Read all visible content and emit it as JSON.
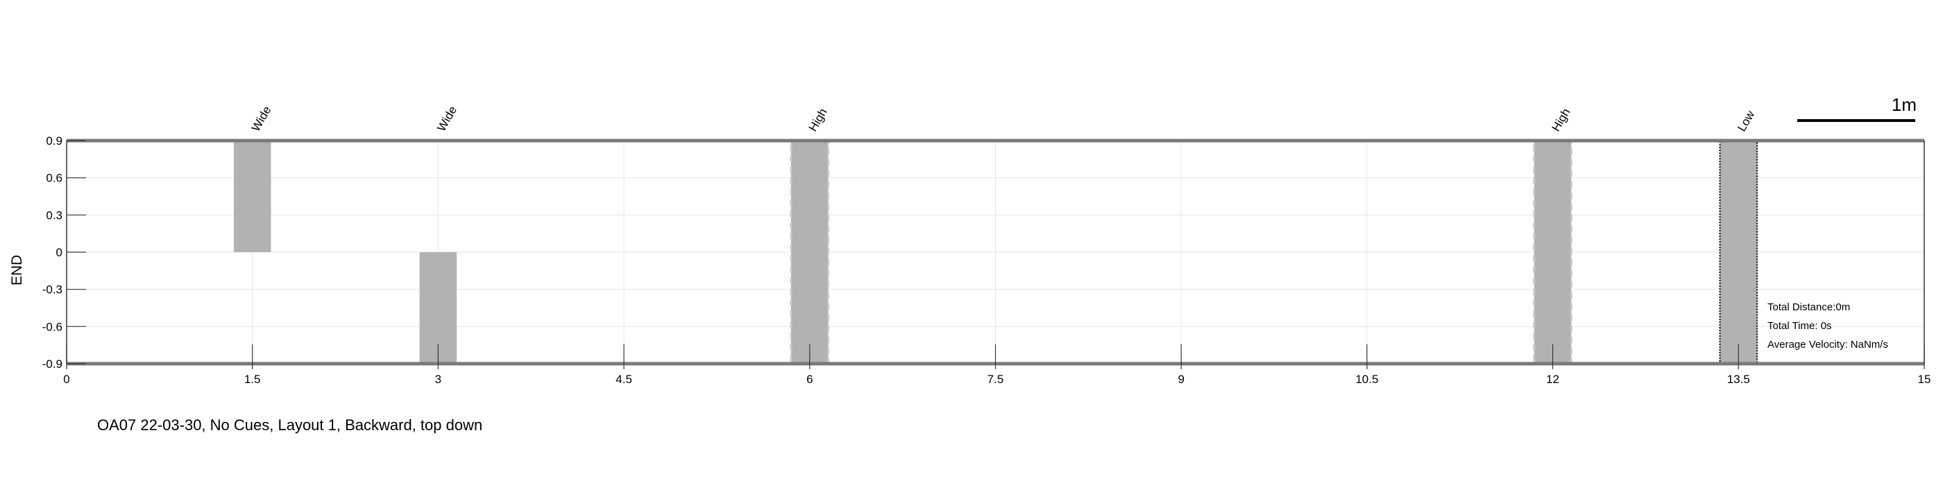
{
  "chart_data": {
    "type": "bar",
    "title": "",
    "xlabel": "",
    "ylabel": "END",
    "xlim": [
      0,
      15
    ],
    "ylim": [
      -0.9,
      0.9
    ],
    "x_ticks": [
      "0",
      "1.5",
      "3",
      "4.5",
      "6",
      "7.5",
      "9",
      "10.5",
      "12",
      "13.5",
      "15"
    ],
    "y_ticks": [
      "0.9",
      "0.6",
      "0.3",
      "0",
      "-0.3",
      "-0.6",
      "-0.9"
    ],
    "grid": true,
    "obstacles": [
      {
        "label": "Wide",
        "x": 1.5,
        "width": 0.3,
        "y_from": 0,
        "y_to": 0.9,
        "style": "solid"
      },
      {
        "label": "Wide",
        "x": 3.0,
        "width": 0.3,
        "y_from": -0.9,
        "y_to": 0,
        "style": "solid"
      },
      {
        "label": "High",
        "x": 6.0,
        "width": 0.3,
        "y_from": -0.9,
        "y_to": 0.9,
        "style": "dashed"
      },
      {
        "label": "High",
        "x": 12.0,
        "width": 0.3,
        "y_from": -0.9,
        "y_to": 0.9,
        "style": "dashed"
      },
      {
        "label": "Low",
        "x": 13.5,
        "width": 0.3,
        "y_from": -0.9,
        "y_to": 0.9,
        "style": "dotted"
      }
    ],
    "scale_bar_label": "1m",
    "stats": [
      "Total Distance:0m",
      "Total Time: 0s",
      "Average Velocity: NaNm/s"
    ],
    "caption": "OA07 22-03-30, No Cues, Layout 1, Backward, top down"
  },
  "colors": {
    "bar_fill": "#b2b2b2",
    "boundary": "#7a7a7a",
    "grid": "#e6e6e6",
    "axis": "#000000"
  }
}
